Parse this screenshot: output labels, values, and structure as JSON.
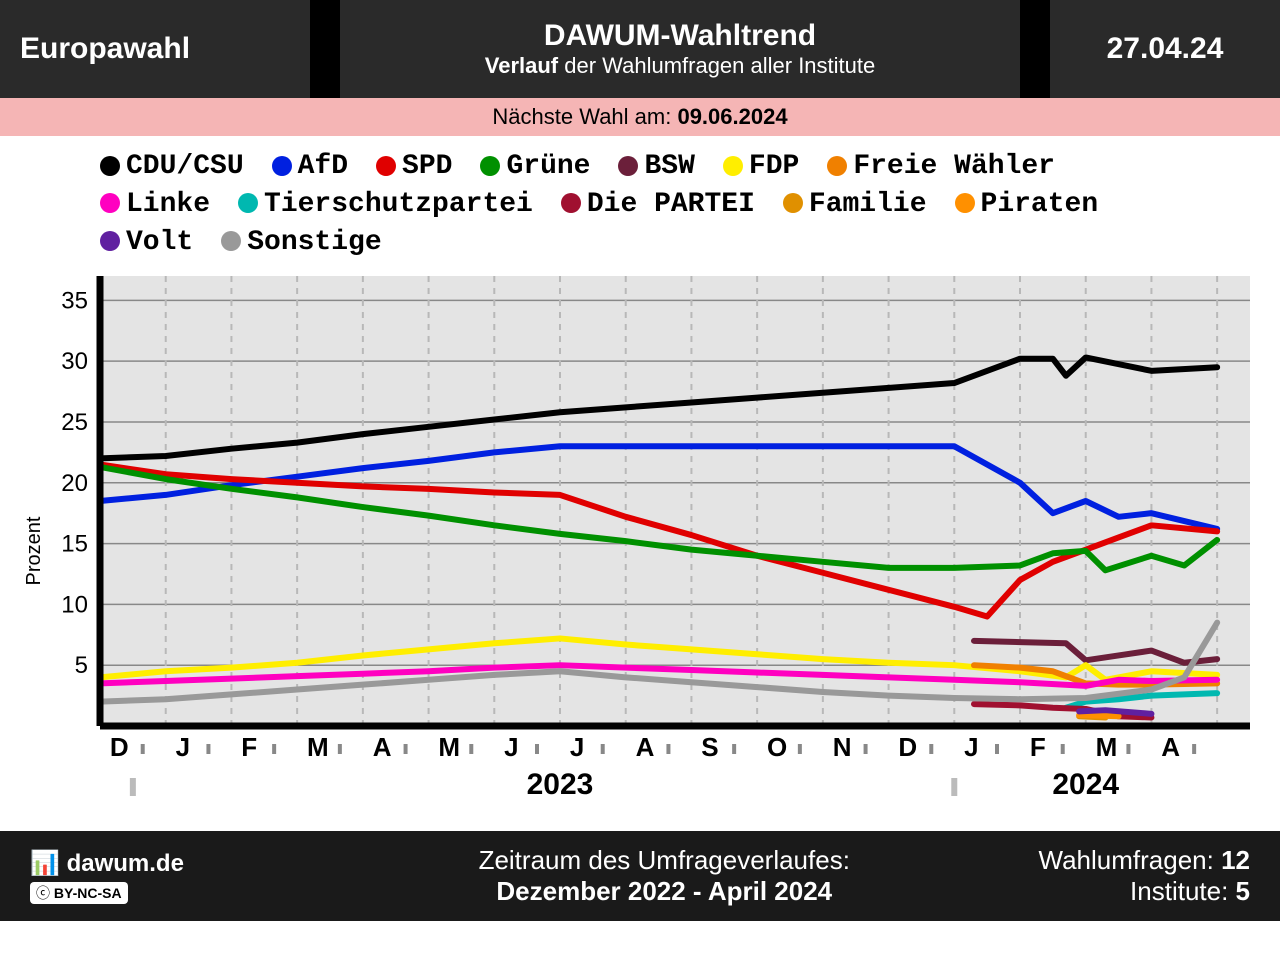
{
  "header": {
    "left": "Europawahl",
    "title": "DAWUM-Wahltrend",
    "subtitle_bold": "Verlauf",
    "subtitle_rest": " der Wahlumfragen aller Institute",
    "date": "27.04.24"
  },
  "next_election": {
    "label": "Nächste Wahl am: ",
    "date": "09.06.2024"
  },
  "ylabel": "Prozent",
  "chart": {
    "type": "line",
    "background": "#e4e4e4",
    "grid_color": "#888888",
    "vgrid_color": "#b8b8b8",
    "line_width": 6,
    "xlim": [
      0,
      17.5
    ],
    "ylim": [
      0,
      37
    ],
    "yticks": [
      5,
      10,
      15,
      20,
      25,
      30,
      35
    ],
    "xtick_labels": [
      "D",
      "J",
      "F",
      "M",
      "A",
      "M",
      "J",
      "J",
      "A",
      "S",
      "O",
      "N",
      "D",
      "J",
      "F",
      "M",
      "A"
    ],
    "year_labels": [
      {
        "x": 7,
        "text": "2023"
      },
      {
        "x": 15,
        "text": "2024"
      }
    ],
    "series": [
      {
        "name": "CDU/CSU",
        "color": "#000000",
        "data": [
          [
            0,
            22
          ],
          [
            1,
            22.2
          ],
          [
            2,
            22.8
          ],
          [
            3,
            23.3
          ],
          [
            4,
            24
          ],
          [
            5,
            24.6
          ],
          [
            6,
            25.2
          ],
          [
            7,
            25.8
          ],
          [
            8,
            26.2
          ],
          [
            9,
            26.6
          ],
          [
            10,
            27
          ],
          [
            11,
            27.4
          ],
          [
            12,
            27.8
          ],
          [
            13,
            28.2
          ],
          [
            14,
            30.2
          ],
          [
            14.5,
            30.2
          ],
          [
            14.7,
            28.8
          ],
          [
            15,
            30.3
          ],
          [
            16,
            29.2
          ],
          [
            17,
            29.5
          ]
        ]
      },
      {
        "name": "AfD",
        "color": "#0020e0",
        "data": [
          [
            0,
            18.5
          ],
          [
            1,
            19
          ],
          [
            2,
            19.8
          ],
          [
            3,
            20.5
          ],
          [
            4,
            21.2
          ],
          [
            5,
            21.8
          ],
          [
            6,
            22.5
          ],
          [
            7,
            23
          ],
          [
            8,
            23
          ],
          [
            9,
            23
          ],
          [
            10,
            23
          ],
          [
            11,
            23
          ],
          [
            12,
            23
          ],
          [
            13,
            23
          ],
          [
            14,
            20
          ],
          [
            14.5,
            17.5
          ],
          [
            15,
            18.5
          ],
          [
            15.5,
            17.2
          ],
          [
            16,
            17.5
          ],
          [
            17,
            16.2
          ]
        ]
      },
      {
        "name": "SPD",
        "color": "#e00000",
        "data": [
          [
            0,
            21.5
          ],
          [
            1,
            20.7
          ],
          [
            2,
            20.3
          ],
          [
            3,
            20
          ],
          [
            4,
            19.7
          ],
          [
            5,
            19.5
          ],
          [
            6,
            19.2
          ],
          [
            7,
            19
          ],
          [
            8,
            17.2
          ],
          [
            9,
            15.7
          ],
          [
            10,
            14
          ],
          [
            11,
            12.6
          ],
          [
            12,
            11.2
          ],
          [
            13,
            9.8
          ],
          [
            13.5,
            9
          ],
          [
            14,
            12
          ],
          [
            14.5,
            13.5
          ],
          [
            15,
            14.5
          ],
          [
            15.5,
            15.5
          ],
          [
            16,
            16.5
          ],
          [
            17,
            16
          ]
        ]
      },
      {
        "name": "Grüne",
        "color": "#009000",
        "data": [
          [
            0,
            21.3
          ],
          [
            1,
            20.3
          ],
          [
            2,
            19.5
          ],
          [
            3,
            18.8
          ],
          [
            4,
            18
          ],
          [
            5,
            17.3
          ],
          [
            6,
            16.5
          ],
          [
            7,
            15.8
          ],
          [
            8,
            15.2
          ],
          [
            9,
            14.5
          ],
          [
            10,
            14
          ],
          [
            11,
            13.5
          ],
          [
            12,
            13
          ],
          [
            13,
            13
          ],
          [
            14,
            13.2
          ],
          [
            14.5,
            14.2
          ],
          [
            15,
            14.4
          ],
          [
            15.3,
            12.8
          ],
          [
            16,
            14
          ],
          [
            16.5,
            13.2
          ],
          [
            17,
            15.3
          ]
        ]
      },
      {
        "name": "BSW",
        "color": "#6b1f3a",
        "data": [
          [
            13.3,
            7
          ],
          [
            14,
            6.9
          ],
          [
            14.7,
            6.8
          ],
          [
            15,
            5.4
          ],
          [
            15.5,
            5.8
          ],
          [
            16,
            6.2
          ],
          [
            16.5,
            5.2
          ],
          [
            17,
            5.5
          ]
        ]
      },
      {
        "name": "FDP",
        "color": "#ffee00",
        "data": [
          [
            0,
            4
          ],
          [
            1,
            4.5
          ],
          [
            2,
            4.8
          ],
          [
            3,
            5.2
          ],
          [
            4,
            5.8
          ],
          [
            5,
            6.3
          ],
          [
            6,
            6.8
          ],
          [
            7,
            7.2
          ],
          [
            8,
            6.7
          ],
          [
            9,
            6.3
          ],
          [
            10,
            5.9
          ],
          [
            11,
            5.5
          ],
          [
            12,
            5.2
          ],
          [
            13,
            5
          ],
          [
            14,
            4.5
          ],
          [
            14.7,
            4
          ],
          [
            15,
            5
          ],
          [
            15.3,
            3.8
          ],
          [
            16,
            4.5
          ],
          [
            17,
            4.2
          ]
        ]
      },
      {
        "name": "Freie Wähler",
        "color": "#f08000",
        "data": [
          [
            13.3,
            5
          ],
          [
            14,
            4.8
          ],
          [
            14.5,
            4.5
          ],
          [
            15,
            3.5
          ],
          [
            15.5,
            3.4
          ],
          [
            16,
            3.4
          ],
          [
            17,
            3.5
          ]
        ]
      },
      {
        "name": "Linke",
        "color": "#ff00c0",
        "data": [
          [
            0,
            3.5
          ],
          [
            1,
            3.7
          ],
          [
            2,
            3.9
          ],
          [
            3,
            4.1
          ],
          [
            4,
            4.3
          ],
          [
            5,
            4.5
          ],
          [
            6,
            4.8
          ],
          [
            7,
            5
          ],
          [
            8,
            4.8
          ],
          [
            9,
            4.6
          ],
          [
            10,
            4.4
          ],
          [
            11,
            4.2
          ],
          [
            12,
            4
          ],
          [
            13,
            3.8
          ],
          [
            14,
            3.6
          ],
          [
            15,
            3.3
          ],
          [
            15.5,
            3.8
          ],
          [
            16,
            3.7
          ],
          [
            17,
            3.8
          ]
        ]
      },
      {
        "name": "Tierschutzpartei",
        "color": "#00b8b0",
        "data": [
          [
            14.7,
            1.5
          ],
          [
            15,
            2
          ],
          [
            15.5,
            2.2
          ],
          [
            16,
            2.5
          ],
          [
            16.5,
            2.6
          ],
          [
            17,
            2.7
          ]
        ]
      },
      {
        "name": "Die PARTEI",
        "color": "#a01030",
        "data": [
          [
            13.3,
            1.8
          ],
          [
            14,
            1.7
          ],
          [
            14.5,
            1.5
          ],
          [
            15,
            1.4
          ],
          [
            15.5,
            0.8
          ],
          [
            16,
            0.7
          ]
        ]
      },
      {
        "name": "Familie",
        "color": "#e09000",
        "data": [
          [
            14.9,
            0.8
          ],
          [
            15.3,
            0.7
          ]
        ]
      },
      {
        "name": "Piraten",
        "color": "#ff9000",
        "data": [
          [
            14.9,
            0.9
          ],
          [
            15.5,
            0.8
          ]
        ]
      },
      {
        "name": "Volt",
        "color": "#6020a0",
        "data": [
          [
            14.9,
            1.2
          ],
          [
            15.3,
            1.3
          ],
          [
            16,
            1.0
          ]
        ]
      },
      {
        "name": "Sonstige",
        "color": "#999999",
        "data": [
          [
            0,
            2
          ],
          [
            1,
            2.2
          ],
          [
            2,
            2.6
          ],
          [
            3,
            3
          ],
          [
            4,
            3.4
          ],
          [
            5,
            3.8
          ],
          [
            6,
            4.2
          ],
          [
            7,
            4.5
          ],
          [
            8,
            4
          ],
          [
            9,
            3.6
          ],
          [
            10,
            3.2
          ],
          [
            11,
            2.8
          ],
          [
            12,
            2.5
          ],
          [
            13,
            2.3
          ],
          [
            14,
            2.2
          ],
          [
            15,
            2.3
          ],
          [
            16,
            3
          ],
          [
            16.5,
            4
          ],
          [
            17,
            8.5
          ]
        ]
      }
    ]
  },
  "footer": {
    "site": "dawum.de",
    "license": "BY-NC-SA",
    "period_label": "Zeitraum des Umfrageverlaufes:",
    "period": "Dezember 2022 - April 2024",
    "polls_label": "Wahlumfragen: ",
    "polls": "12",
    "inst_label": "Institute: ",
    "inst": "5"
  }
}
